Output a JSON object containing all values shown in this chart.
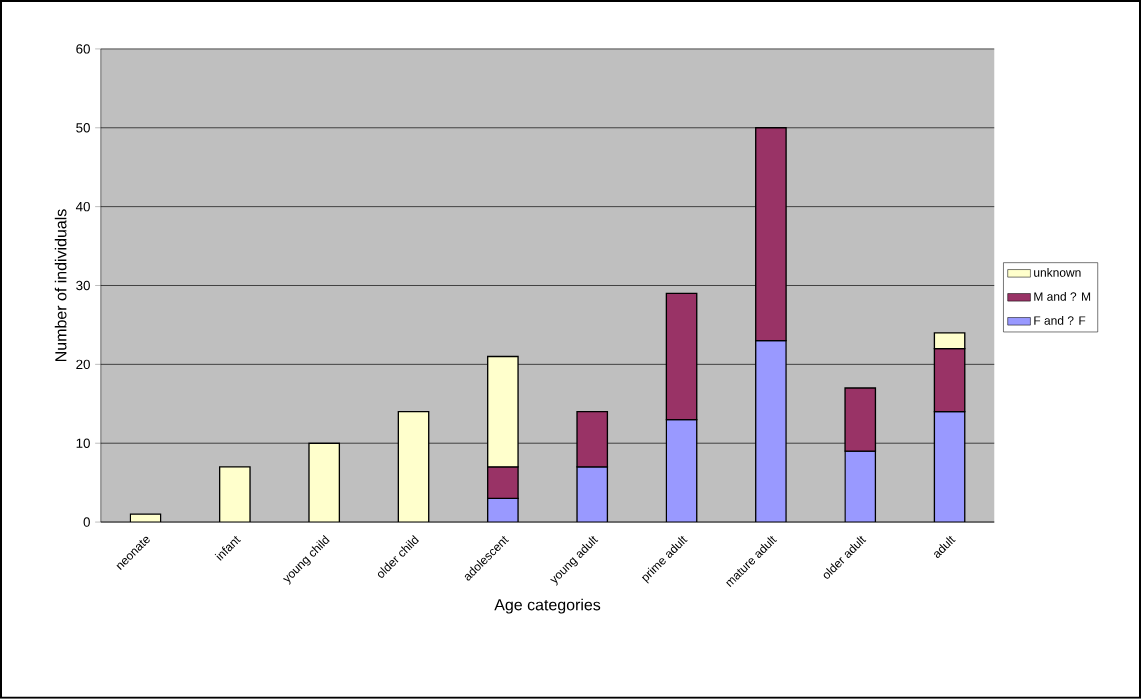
{
  "chart_data": {
    "type": "bar",
    "stacked": true,
    "xlabel": "Age categories",
    "ylabel": "Number of individuals",
    "categories": [
      "neonate",
      "infant",
      "young child",
      "older child",
      "adolescent",
      "young adult",
      "prime adult",
      "mature adult",
      "older adult",
      "adult"
    ],
    "series": [
      {
        "name": "F and ? F",
        "color": "#9999ff",
        "values": [
          null,
          null,
          null,
          null,
          3,
          7,
          13,
          23,
          9,
          14
        ]
      },
      {
        "name": "M and ? M",
        "color": "#993366",
        "values": [
          null,
          null,
          null,
          null,
          4,
          7,
          16,
          27,
          8,
          8
        ]
      },
      {
        "name": "unknown",
        "color": "#ffffcc",
        "values": [
          1,
          7,
          10,
          14,
          14,
          null,
          null,
          null,
          null,
          2
        ]
      }
    ],
    "ylim": [
      0,
      60
    ],
    "yticks": [
      0,
      10,
      20,
      30,
      40,
      50,
      60
    ],
    "grid": "y",
    "legend": "right"
  }
}
